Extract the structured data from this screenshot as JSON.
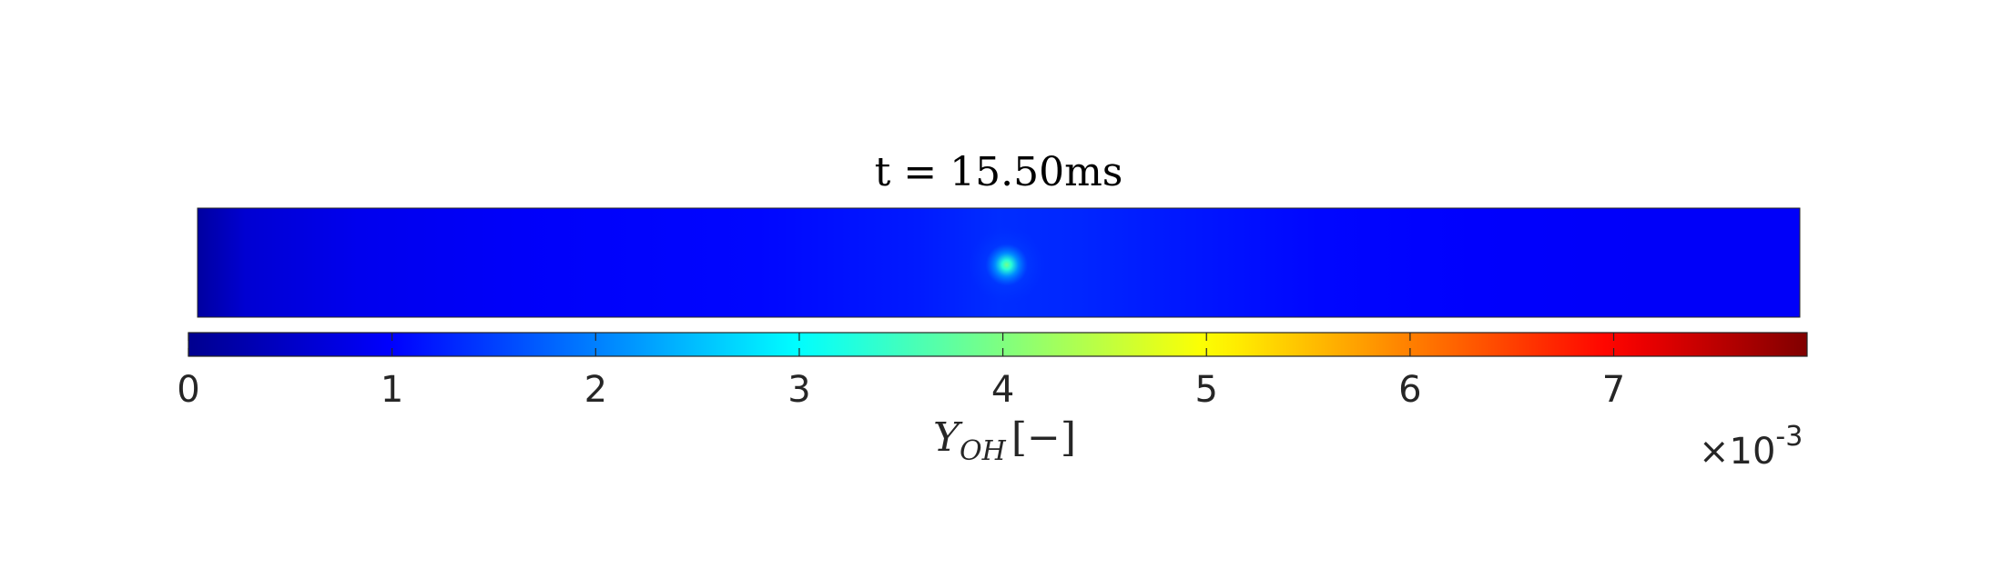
{
  "chart_data": {
    "type": "heatmap",
    "title": "t = 15.50ms",
    "colormap": "jet",
    "colorbar": {
      "label_main": "Y",
      "label_sub": "OH",
      "label_unit": "[−]",
      "ticks": [
        "0",
        "1",
        "2",
        "3",
        "4",
        "5",
        "6",
        "7"
      ],
      "range": [
        0,
        7.95
      ],
      "multiplier_prefix": "×10",
      "multiplier_exponent": "-3",
      "orientation": "horizontal",
      "colors": [
        "#00008f",
        "#0000ff",
        "#00ffff",
        "#ffff00",
        "#ff0000",
        "#800000"
      ]
    },
    "field": {
      "description_values_x_fraction": [
        0.0,
        0.03,
        0.1,
        0.2,
        0.35,
        0.45,
        0.5,
        0.55,
        0.6,
        0.7,
        0.8,
        0.9,
        1.0
      ],
      "background_values": [
        0.15,
        0.6,
        0.85,
        0.95,
        1.05,
        1.2,
        1.35,
        1.3,
        1.2,
        1.05,
        0.98,
        0.95,
        0.95
      ],
      "hotspot": {
        "x_fraction": 0.505,
        "y_fraction": 0.52,
        "peak_value": 3.9
      }
    }
  }
}
